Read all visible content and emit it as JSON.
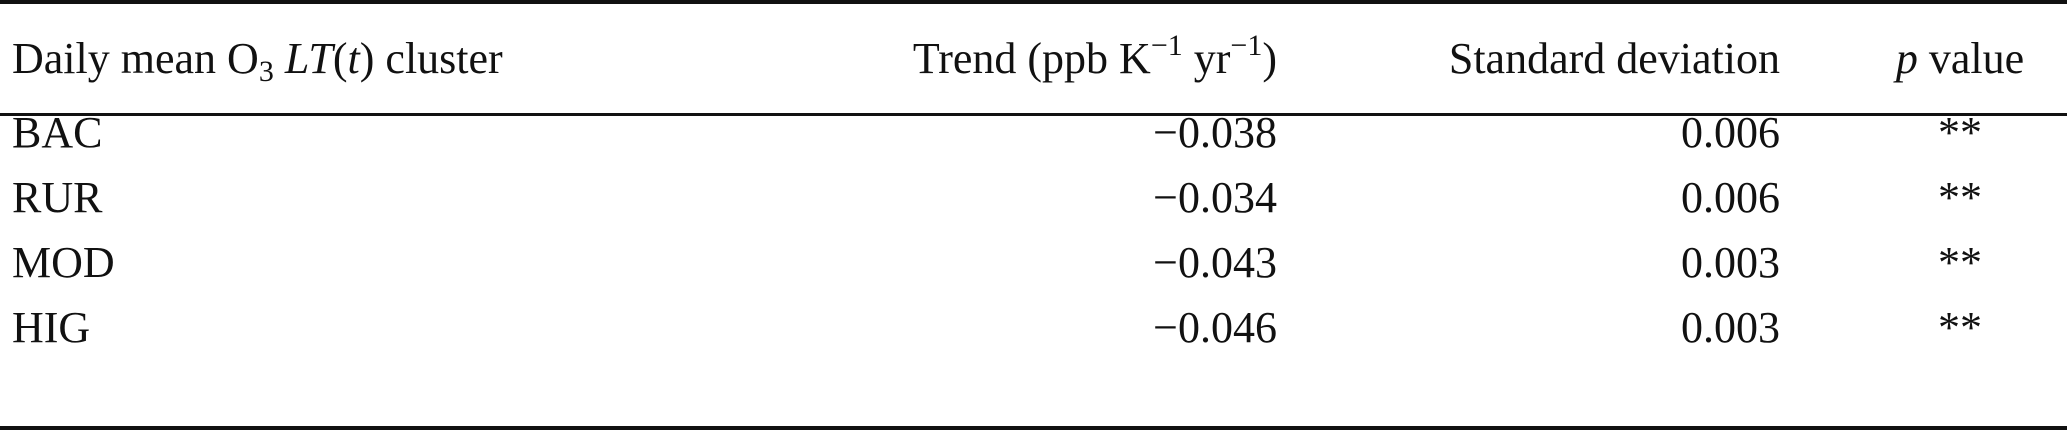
{
  "table": {
    "headers": {
      "cluster": {
        "prefix": "Daily mean O",
        "sub": "3",
        "italic": "LT",
        "paren_open": "(",
        "var": "t",
        "paren_close": ")",
        "suffix": " cluster"
      },
      "trend": {
        "prefix": "Trend (ppb K",
        "sup1": "−1",
        "mid": " yr",
        "sup2": "−1",
        "suffix": ")"
      },
      "std": "Standard deviation",
      "p": {
        "italic": "p",
        "suffix": " value"
      }
    },
    "rows": [
      {
        "cluster": "BAC",
        "trend": "−0.038",
        "std": "0.006",
        "p": "**"
      },
      {
        "cluster": "RUR",
        "trend": "−0.034",
        "std": "0.006",
        "p": "**"
      },
      {
        "cluster": "MOD",
        "trend": "−0.043",
        "std": "0.003",
        "p": "**"
      },
      {
        "cluster": "HIG",
        "trend": "−0.046",
        "std": "0.003",
        "p": "**"
      }
    ]
  }
}
